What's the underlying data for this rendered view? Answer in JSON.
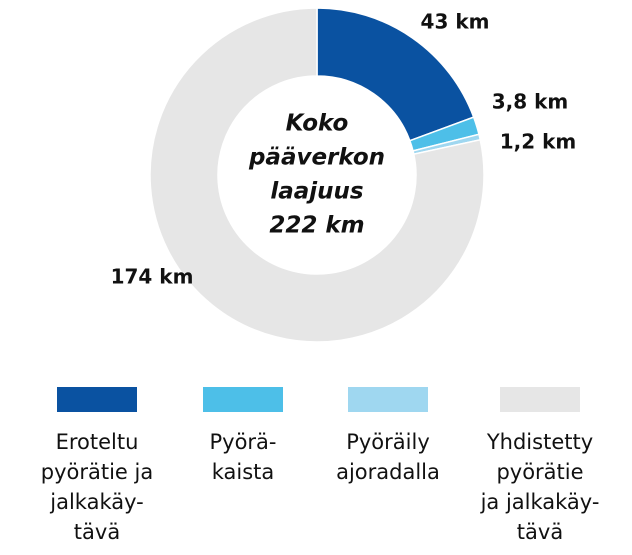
{
  "chart_data": {
    "type": "donut",
    "center_text": [
      "Koko",
      "pääverkon",
      "laajuus",
      "222 km"
    ],
    "categories": [
      [
        "Eroteltu",
        "pyörätie ja",
        "jalkakäy-",
        "tävä"
      ],
      [
        "Pyörä-",
        "kaista"
      ],
      [
        "Pyöräily",
        "ajoradalla"
      ],
      [
        "Yhdistetty",
        "pyörätie",
        "ja jalkakäy-",
        "tävä"
      ]
    ],
    "values": [
      43,
      3.8,
      1.2,
      174
    ],
    "value_labels": [
      "43 km",
      "3,8 km",
      "1,2 km",
      "174 km"
    ],
    "colors": [
      "#0a52a1",
      "#4dbfe8",
      "#9fd7f0",
      "#e6e6e6"
    ]
  }
}
